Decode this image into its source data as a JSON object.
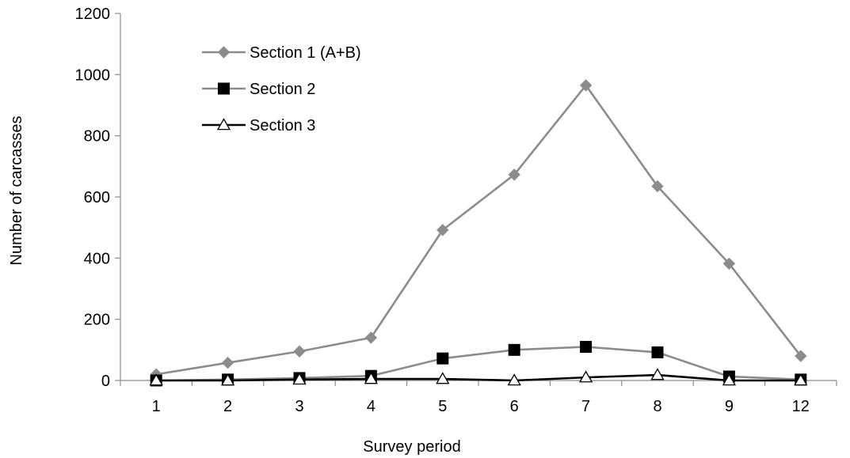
{
  "chart_data": {
    "type": "line",
    "title": "",
    "xlabel": "Survey period",
    "ylabel": "Number of carcasses",
    "categories": [
      "1",
      "2",
      "3",
      "4",
      "5",
      "6",
      "7",
      "8",
      "9",
      "12"
    ],
    "ylim": [
      0,
      1200
    ],
    "yticks": [
      0,
      200,
      400,
      600,
      800,
      1000,
      1200
    ],
    "grid": false,
    "legend_position": "top-left",
    "series": [
      {
        "name": "Section 1 (A+B)",
        "color": "#8c8c8c",
        "marker": "diamond",
        "values": [
          20,
          58,
          95,
          140,
          492,
          673,
          965,
          635,
          382,
          80
        ]
      },
      {
        "name": "Section 2",
        "color": "#000000",
        "line_color": "#8c8c8c",
        "marker": "square",
        "values": [
          0,
          3,
          8,
          15,
          72,
          100,
          110,
          92,
          13,
          3
        ]
      },
      {
        "name": "Section 3",
        "color": "#000000",
        "marker": "open-triangle",
        "values": [
          0,
          0,
          3,
          5,
          5,
          0,
          10,
          18,
          0,
          0
        ]
      }
    ]
  }
}
